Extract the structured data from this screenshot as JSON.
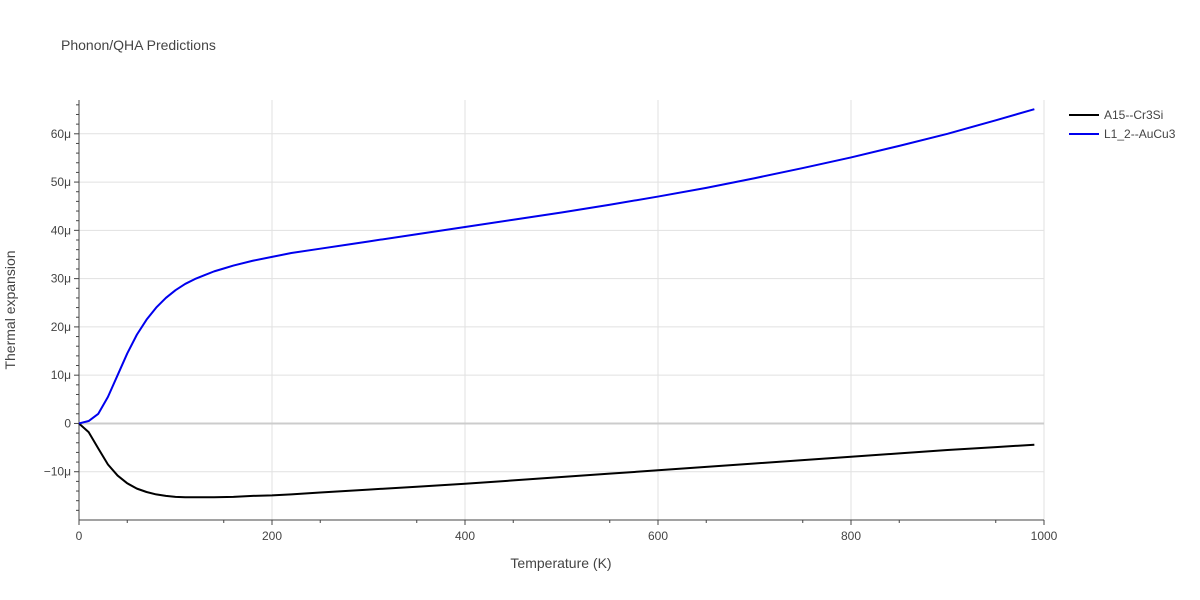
{
  "chart_data": {
    "type": "line",
    "title": "Phonon/QHA Predictions",
    "xlabel": "Temperature (K)",
    "ylabel": "Thermal expansion",
    "xlim": [
      0,
      1000
    ],
    "ylim": [
      -2e-05,
      6.7e-05
    ],
    "x_ticks": [
      {
        "value": 0,
        "label": "0"
      },
      {
        "value": 200,
        "label": "200"
      },
      {
        "value": 400,
        "label": "400"
      },
      {
        "value": 600,
        "label": "600"
      },
      {
        "value": 800,
        "label": "800"
      },
      {
        "value": 1000,
        "label": "1000"
      }
    ],
    "y_ticks": [
      {
        "value": -1e-05,
        "label": "−10μ"
      },
      {
        "value": 0,
        "label": "0"
      },
      {
        "value": 1e-05,
        "label": "10μ"
      },
      {
        "value": 2e-05,
        "label": "20μ"
      },
      {
        "value": 3e-05,
        "label": "30μ"
      },
      {
        "value": 4e-05,
        "label": "40μ"
      },
      {
        "value": 5e-05,
        "label": "50μ"
      },
      {
        "value": 6e-05,
        "label": "60μ"
      }
    ],
    "grid": true,
    "legend_position": "top-right",
    "series": [
      {
        "name": "A15--Cr3Si",
        "color": "#000000",
        "x": [
          0,
          10,
          20,
          30,
          40,
          50,
          60,
          70,
          80,
          90,
          100,
          110,
          120,
          140,
          160,
          180,
          200,
          220,
          250,
          300,
          350,
          400,
          450,
          500,
          550,
          600,
          650,
          700,
          750,
          800,
          850,
          900,
          950,
          990
        ],
        "y": [
          0,
          -1.8e-06,
          -5.2e-06,
          -8.5e-06,
          -1.08e-05,
          -1.24e-05,
          -1.35e-05,
          -1.42e-05,
          -1.47e-05,
          -1.5e-05,
          -1.52e-05,
          -1.53e-05,
          -1.53e-05,
          -1.53e-05,
          -1.52e-05,
          -1.5e-05,
          -1.49e-05,
          -1.47e-05,
          -1.43e-05,
          -1.37e-05,
          -1.31e-05,
          -1.25e-05,
          -1.18e-05,
          -1.11e-05,
          -1.04e-05,
          -9.7e-06,
          -9e-06,
          -8.3e-06,
          -7.6e-06,
          -6.9e-06,
          -6.2e-06,
          -5.5e-06,
          -4.9e-06,
          -4.4e-06
        ]
      },
      {
        "name": "L1_2--AuCu3",
        "color": "#0000ee",
        "x": [
          0,
          10,
          20,
          30,
          40,
          50,
          60,
          70,
          80,
          90,
          100,
          110,
          120,
          130,
          140,
          150,
          160,
          180,
          200,
          220,
          250,
          280,
          300,
          350,
          400,
          450,
          500,
          550,
          600,
          650,
          700,
          750,
          800,
          850,
          900,
          950,
          990
        ],
        "y": [
          0,
          5e-07,
          2e-06,
          5.5e-06,
          1e-05,
          1.45e-05,
          1.84e-05,
          2.15e-05,
          2.4e-05,
          2.6e-05,
          2.76e-05,
          2.89e-05,
          2.99e-05,
          3.07e-05,
          3.15e-05,
          3.21e-05,
          3.27e-05,
          3.37e-05,
          3.45e-05,
          3.53e-05,
          3.62e-05,
          3.71e-05,
          3.77e-05,
          3.92e-05,
          4.07e-05,
          4.22e-05,
          4.37e-05,
          4.53e-05,
          4.7e-05,
          4.88e-05,
          5.08e-05,
          5.29e-05,
          5.51e-05,
          5.75e-05,
          6e-05,
          6.28e-05,
          6.51e-05
        ]
      }
    ]
  }
}
